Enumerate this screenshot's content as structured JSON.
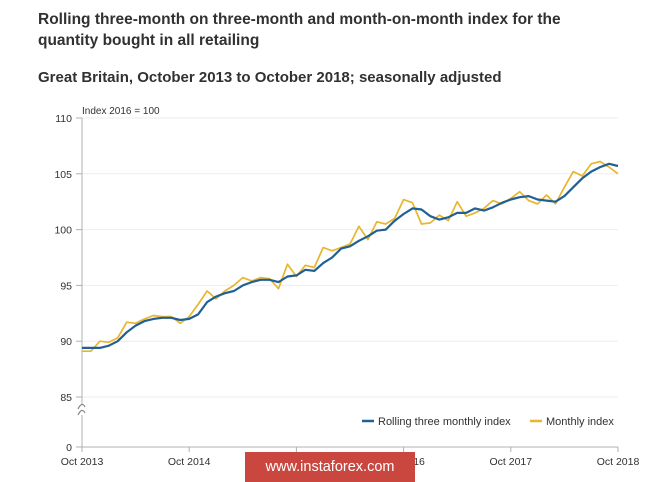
{
  "title": "Rolling three-month on three-month and month-on-month index for the quantity bought in all retailing",
  "subtitle": "Great Britain, October 2013 to October 2018; seasonally adjusted",
  "watermark": "www.instaforex.com",
  "colors": {
    "rolling": "#206095",
    "monthly": "#e8b52d",
    "axis": "#b0b0b0",
    "text": "#323132"
  },
  "chart_data": {
    "type": "line",
    "ylabel": "Index 2016 = 100",
    "y_ticks": [
      0,
      85,
      90,
      95,
      100,
      105,
      110
    ],
    "y_axis_break": true,
    "ylim": [
      85,
      110
    ],
    "x_tick_labels": [
      "Oct 2013",
      "Oct 2014",
      "Oct 2015",
      "Oct 2016",
      "Oct 2017",
      "Oct 2018"
    ],
    "x_tick_index": [
      0,
      12,
      24,
      36,
      48,
      60
    ],
    "x": [
      "Oct 2013",
      "Nov 2013",
      "Dec 2013",
      "Jan 2014",
      "Feb 2014",
      "Mar 2014",
      "Apr 2014",
      "May 2014",
      "Jun 2014",
      "Jul 2014",
      "Aug 2014",
      "Sep 2014",
      "Oct 2014",
      "Nov 2014",
      "Dec 2014",
      "Jan 2015",
      "Feb 2015",
      "Mar 2015",
      "Apr 2015",
      "May 2015",
      "Jun 2015",
      "Jul 2015",
      "Aug 2015",
      "Sep 2015",
      "Oct 2015",
      "Nov 2015",
      "Dec 2015",
      "Jan 2016",
      "Feb 2016",
      "Mar 2016",
      "Apr 2016",
      "May 2016",
      "Jun 2016",
      "Jul 2016",
      "Aug 2016",
      "Sep 2016",
      "Oct 2016",
      "Nov 2016",
      "Dec 2016",
      "Jan 2017",
      "Feb 2017",
      "Mar 2017",
      "Apr 2017",
      "May 2017",
      "Jun 2017",
      "Jul 2017",
      "Aug 2017",
      "Sep 2017",
      "Oct 2017",
      "Nov 2017",
      "Dec 2017",
      "Jan 2018",
      "Feb 2018",
      "Mar 2018",
      "Apr 2018",
      "May 2018",
      "Jun 2018",
      "Jul 2018",
      "Aug 2018",
      "Sep 2018",
      "Oct 2018"
    ],
    "legend_position": "bottom-right",
    "series": [
      {
        "name": "Rolling three monthly index",
        "color": "#206095",
        "values": [
          89.4,
          89.4,
          89.4,
          89.6,
          90.0,
          90.8,
          91.4,
          91.8,
          92.0,
          92.1,
          92.1,
          91.9,
          92.0,
          92.4,
          93.5,
          94.0,
          94.3,
          94.5,
          95.0,
          95.3,
          95.5,
          95.5,
          95.3,
          95.8,
          95.9,
          96.4,
          96.3,
          97.0,
          97.5,
          98.3,
          98.5,
          99.0,
          99.4,
          99.9,
          100.0,
          100.8,
          101.4,
          101.9,
          101.8,
          101.2,
          100.9,
          101.1,
          101.5,
          101.5,
          101.9,
          101.7,
          102.0,
          102.4,
          102.7,
          102.9,
          103.0,
          102.7,
          102.6,
          102.5,
          103.0,
          103.8,
          104.6,
          105.2,
          105.6,
          105.9,
          105.7
        ]
      },
      {
        "name": "Monthly index",
        "color": "#e8b52d",
        "values": [
          89.1,
          89.1,
          90.0,
          89.9,
          90.3,
          91.7,
          91.6,
          92.0,
          92.3,
          92.2,
          92.2,
          91.6,
          92.2,
          93.3,
          94.5,
          93.8,
          94.5,
          95.0,
          95.7,
          95.4,
          95.7,
          95.6,
          94.7,
          96.9,
          95.8,
          96.8,
          96.6,
          98.4,
          98.1,
          98.4,
          98.7,
          100.3,
          99.1,
          100.7,
          100.5,
          101.0,
          102.7,
          102.4,
          100.5,
          100.6,
          101.3,
          100.8,
          102.5,
          101.2,
          101.5,
          101.9,
          102.6,
          102.3,
          102.8,
          103.4,
          102.6,
          102.3,
          103.1,
          102.3,
          103.8,
          105.2,
          104.8,
          105.9,
          106.1,
          105.6,
          105.0
        ]
      }
    ]
  }
}
